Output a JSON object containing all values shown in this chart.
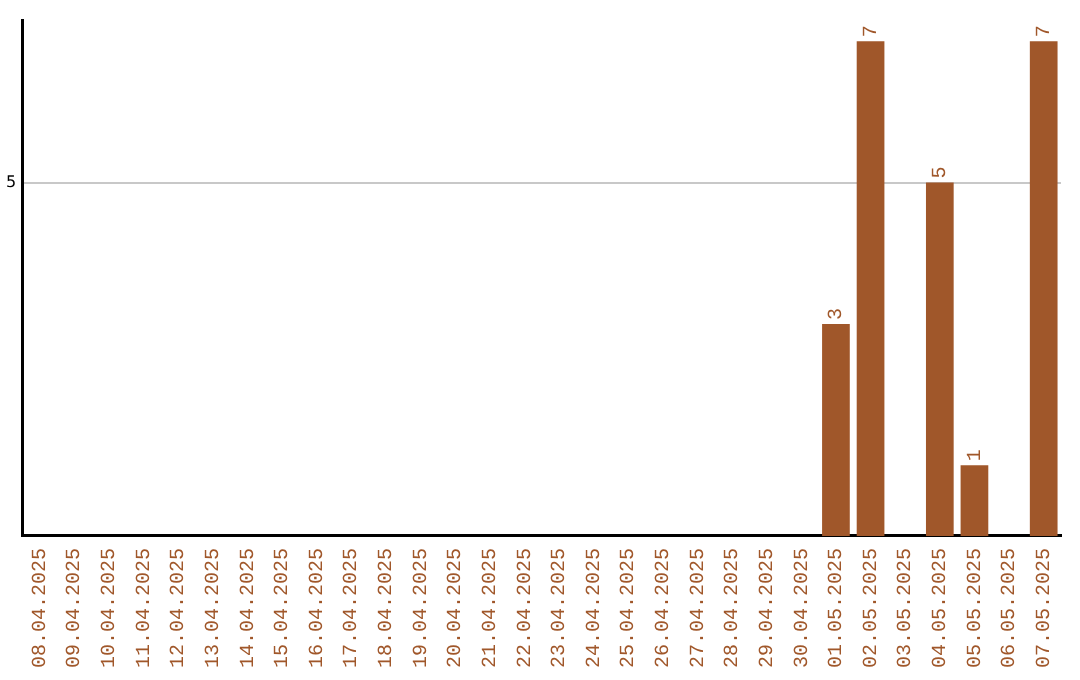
{
  "chart_data": {
    "type": "bar",
    "categories": [
      "08.04.2025",
      "09.04.2025",
      "10.04.2025",
      "11.04.2025",
      "12.04.2025",
      "13.04.2025",
      "14.04.2025",
      "15.04.2025",
      "16.04.2025",
      "17.04.2025",
      "18.04.2025",
      "19.04.2025",
      "20.04.2025",
      "21.04.2025",
      "22.04.2025",
      "23.04.2025",
      "24.04.2025",
      "25.04.2025",
      "26.04.2025",
      "27.04.2025",
      "28.04.2025",
      "29.04.2025",
      "30.04.2025",
      "01.05.2025",
      "02.05.2025",
      "03.05.2025",
      "04.05.2025",
      "05.05.2025",
      "06.05.2025",
      "07.05.2025"
    ],
    "values": [
      null,
      null,
      null,
      null,
      null,
      null,
      null,
      null,
      null,
      null,
      null,
      null,
      null,
      null,
      null,
      null,
      null,
      null,
      null,
      null,
      null,
      null,
      null,
      3,
      7,
      null,
      5,
      1,
      null,
      7
    ],
    "data_labels": true,
    "color": "#a0572a",
    "ylim": [
      0,
      7.3
    ],
    "yticks": [
      5
    ],
    "grid": "y"
  }
}
